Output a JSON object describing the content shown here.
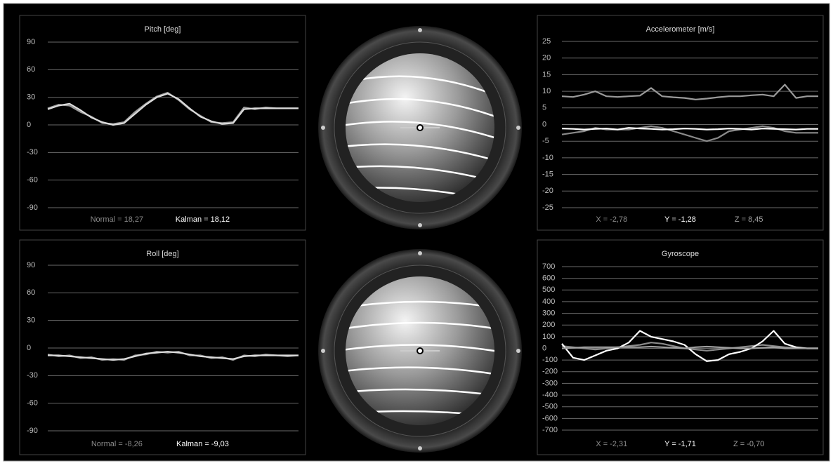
{
  "chart_data": [
    {
      "type": "line",
      "title": "Pitch [deg]",
      "ylim": [
        -90,
        90
      ],
      "yticks": [
        90,
        60,
        30,
        0,
        -30,
        -60,
        -90
      ],
      "grid": true,
      "series": [
        {
          "color": "#9a9a9a",
          "values": [
            18,
            22,
            21,
            14,
            9,
            2,
            1,
            3,
            14,
            23,
            31,
            35,
            27,
            17,
            10,
            3,
            2,
            3,
            19,
            17,
            19,
            18,
            18,
            18
          ]
        },
        {
          "color": "#dcdcdc",
          "values": [
            17,
            21,
            23,
            16,
            8,
            3,
            0,
            2,
            12,
            22,
            30,
            34,
            28,
            18,
            9,
            4,
            1,
            2,
            17,
            18,
            18,
            18,
            18,
            18
          ]
        }
      ],
      "readouts": [
        {
          "text": "Normal = 18,27",
          "color": "#8a8a8a"
        },
        {
          "text": "Kalman = 18,12",
          "color": "#ffffff"
        }
      ]
    },
    {
      "type": "line",
      "title": "Roll [deg]",
      "ylim": [
        -90,
        90
      ],
      "yticks": [
        90,
        60,
        30,
        0,
        -30,
        -60,
        -90
      ],
      "grid": true,
      "series": [
        {
          "color": "#9a9a9a",
          "values": [
            -7,
            -9,
            -8,
            -11,
            -10,
            -13,
            -12,
            -13,
            -8,
            -7,
            -4,
            -5,
            -4,
            -8,
            -8,
            -11,
            -10,
            -13,
            -8,
            -9,
            -7,
            -8,
            -9,
            -8
          ]
        },
        {
          "color": "#dcdcdc",
          "values": [
            -8,
            -8,
            -9,
            -10,
            -11,
            -12,
            -13,
            -12,
            -9,
            -6,
            -5,
            -4,
            -5,
            -7,
            -9,
            -10,
            -11,
            -12,
            -9,
            -8,
            -8,
            -8,
            -8,
            -8
          ]
        }
      ],
      "readouts": [
        {
          "text": "Normal = -8,26",
          "color": "#8a8a8a"
        },
        {
          "text": "Kalman = -9,03",
          "color": "#ffffff"
        }
      ]
    },
    {
      "type": "line",
      "title": "Accelerometer [m/s]",
      "ylim": [
        -25,
        25
      ],
      "yticks": [
        25,
        20,
        15,
        10,
        5,
        0,
        -5,
        -10,
        -15,
        -20,
        -25
      ],
      "grid": true,
      "series": [
        {
          "color": "#8a8a8a",
          "values": [
            -3,
            -2.5,
            -2,
            -1,
            -1.5,
            -1.5,
            -1.5,
            -1,
            -0.5,
            -1,
            -2,
            -3,
            -4,
            -5,
            -4,
            -2,
            -1.5,
            -1,
            -0.5,
            -1,
            -2,
            -2.5,
            -2.5,
            -2.5
          ]
        },
        {
          "color": "#ffffff",
          "values": [
            -1.2,
            -1.3,
            -1.5,
            -1.3,
            -1.2,
            -1.5,
            -1,
            -1.2,
            -1.3,
            -1.5,
            -1.4,
            -1.2,
            -1.3,
            -1.5,
            -1.4,
            -1.2,
            -1.3,
            -1.5,
            -1.2,
            -1.3,
            -1.4,
            -1.5,
            -1.3,
            -1.3
          ]
        },
        {
          "color": "#9a9a9a",
          "values": [
            8.5,
            8.3,
            9,
            10,
            8.5,
            8.3,
            8.5,
            8.7,
            11,
            8.5,
            8.2,
            8,
            7.5,
            7.8,
            8.2,
            8.5,
            8.5,
            8.8,
            9,
            8.5,
            12,
            8,
            8.5,
            8.5
          ]
        }
      ],
      "readouts": [
        {
          "text": "X = -2,78",
          "color": "#8a8a8a"
        },
        {
          "text": "Y = -1,28",
          "color": "#ffffff"
        },
        {
          "text": "Z = 8,45",
          "color": "#a0a0a0"
        }
      ]
    },
    {
      "type": "line",
      "title": "Gyroscope",
      "ylim": [
        -700,
        700
      ],
      "yticks": [
        700,
        600,
        500,
        400,
        300,
        200,
        100,
        0,
        -100,
        -200,
        -300,
        -400,
        -500,
        -600,
        -700
      ],
      "grid": true,
      "series": [
        {
          "color": "#8a8a8a",
          "values": [
            20,
            10,
            0,
            -10,
            0,
            10,
            20,
            30,
            50,
            40,
            20,
            0,
            -10,
            -20,
            -10,
            0,
            10,
            20,
            30,
            20,
            10,
            5,
            0,
            0
          ]
        },
        {
          "color": "#ffffff",
          "values": [
            40,
            -80,
            -100,
            -60,
            -20,
            0,
            50,
            150,
            100,
            80,
            60,
            30,
            -50,
            -110,
            -100,
            -50,
            -30,
            0,
            60,
            150,
            40,
            10,
            0,
            0
          ]
        },
        {
          "color": "#a0a0a0",
          "values": [
            0,
            5,
            10,
            10,
            10,
            10,
            10,
            10,
            15,
            10,
            5,
            0,
            10,
            15,
            10,
            5,
            0,
            0,
            5,
            10,
            0,
            0,
            0,
            0
          ]
        }
      ],
      "readouts": [
        {
          "text": "X = -2,31",
          "color": "#8a8a8a"
        },
        {
          "text": "Y = -1,71",
          "color": "#ffffff"
        },
        {
          "text": "Z = -0,70",
          "color": "#a0a0a0"
        }
      ]
    }
  ]
}
